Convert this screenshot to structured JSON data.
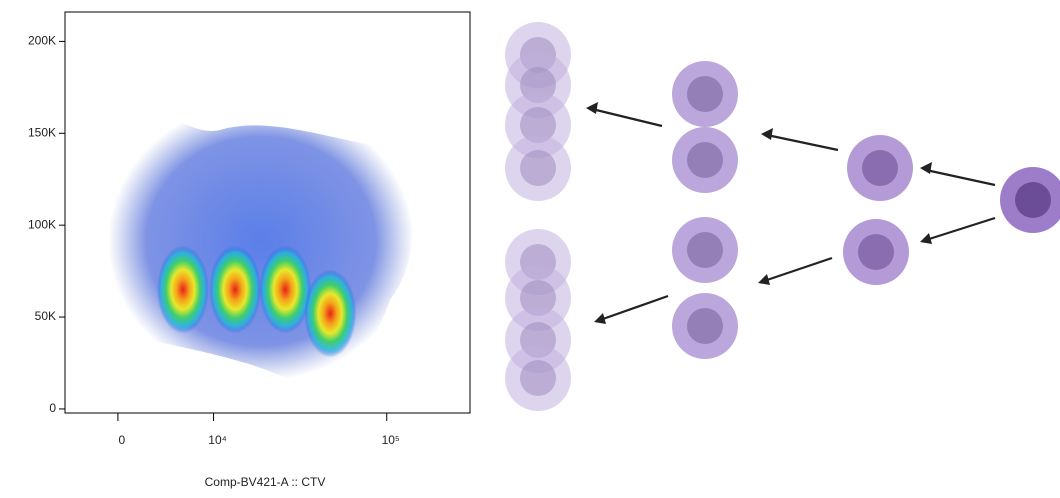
{
  "chart_data": {
    "type": "density",
    "x_label": "Comp-BV421-A :: CTV",
    "xscale": "biexponential",
    "xlim": [
      -4700,
      290000
    ],
    "xticks": [
      0,
      {
        "value": 10000,
        "label": "10⁴"
      },
      {
        "value": 100000,
        "label": "10⁵"
      }
    ],
    "ylim": [
      -2200,
      216000
    ],
    "yticks": [
      0,
      {
        "value": 50000,
        "label": "50K"
      },
      {
        "value": 100000,
        "label": "100K"
      },
      {
        "value": 150000,
        "label": "150K"
      },
      {
        "value": 200000,
        "label": "200K"
      }
    ],
    "populations": {
      "x": [
        6000,
        13700,
        27000,
        48400
      ],
      "y": [
        65000,
        65000,
        65000,
        52000
      ]
    }
  }
}
